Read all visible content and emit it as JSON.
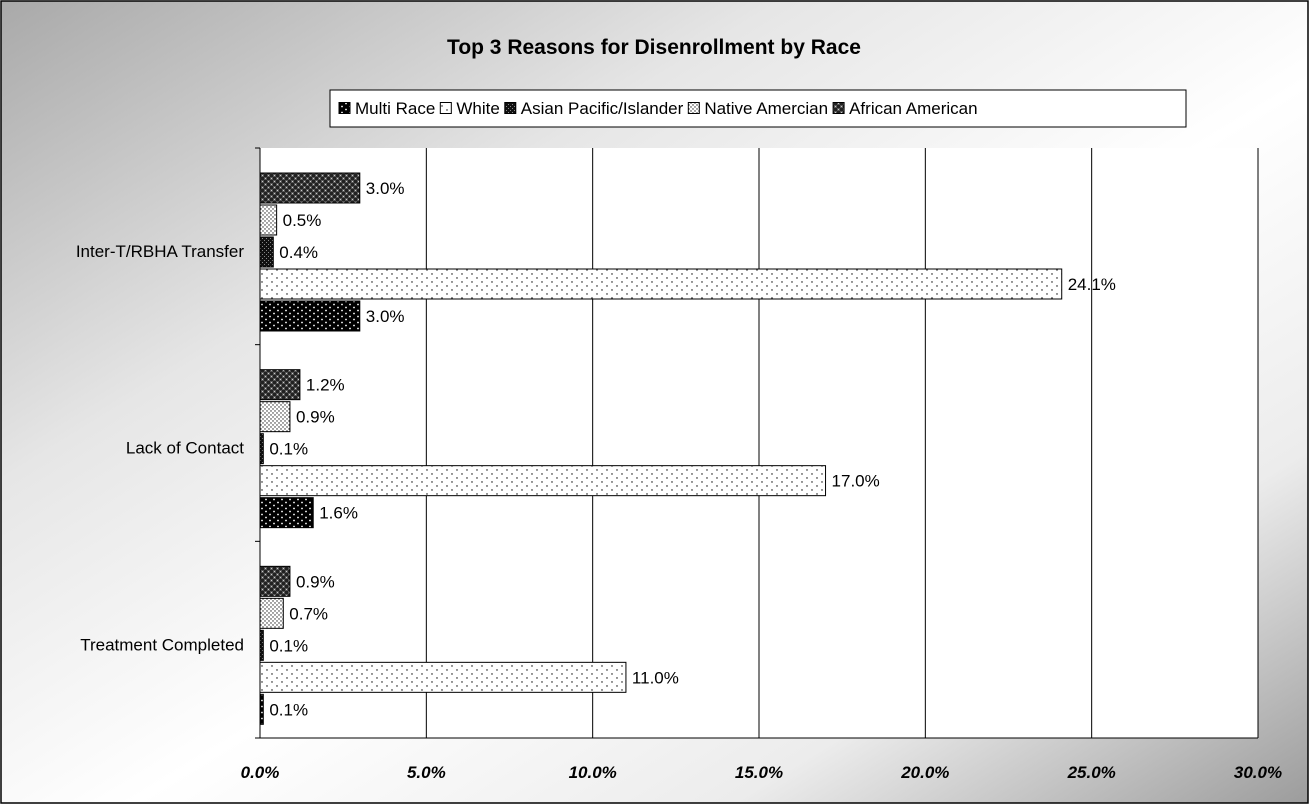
{
  "chart_data": {
    "type": "bar",
    "orientation": "horizontal",
    "title": "Top 3 Reasons for Disenrollment by Race",
    "categories": [
      "Inter-T/RBHA Transfer",
      "Lack of Contact",
      "Treatment Completed"
    ],
    "series": [
      {
        "name": "Multi Race",
        "values": [
          3.0,
          1.6,
          0.1
        ],
        "labels": [
          "3.0%",
          "1.6%",
          "0.1%"
        ],
        "pattern": "dots-on-black"
      },
      {
        "name": "White",
        "values": [
          24.1,
          17.0,
          11.0
        ],
        "labels": [
          "24.1%",
          "17.0%",
          "11.0%"
        ],
        "pattern": "sparse-dots"
      },
      {
        "name": "Asian Pacific/Islander",
        "values": [
          0.4,
          0.1,
          0.1
        ],
        "labels": [
          "0.4%",
          "0.1%",
          "0.1%"
        ],
        "pattern": "dense-dark"
      },
      {
        "name": "Native Amercian",
        "values": [
          0.5,
          0.9,
          0.7
        ],
        "labels": [
          "0.5%",
          "0.9%",
          "0.7%"
        ],
        "pattern": "dense-dots"
      },
      {
        "name": "African American",
        "values": [
          3.0,
          1.2,
          0.9
        ],
        "labels": [
          "3.0%",
          "1.2%",
          "0.9%"
        ],
        "pattern": "checker"
      }
    ],
    "legend_order": [
      "Multi Race",
      "White",
      "Asian Pacific/Islander",
      "Native Amercian",
      "African American"
    ],
    "x_ticks": [
      0,
      5,
      10,
      15,
      20,
      25,
      30
    ],
    "x_tick_labels": [
      "0.0%",
      "5.0%",
      "10.0%",
      "15.0%",
      "20.0%",
      "25.0%",
      "30.0%"
    ],
    "xlim": [
      0,
      30
    ],
    "grid": true,
    "legend_position": "top"
  }
}
